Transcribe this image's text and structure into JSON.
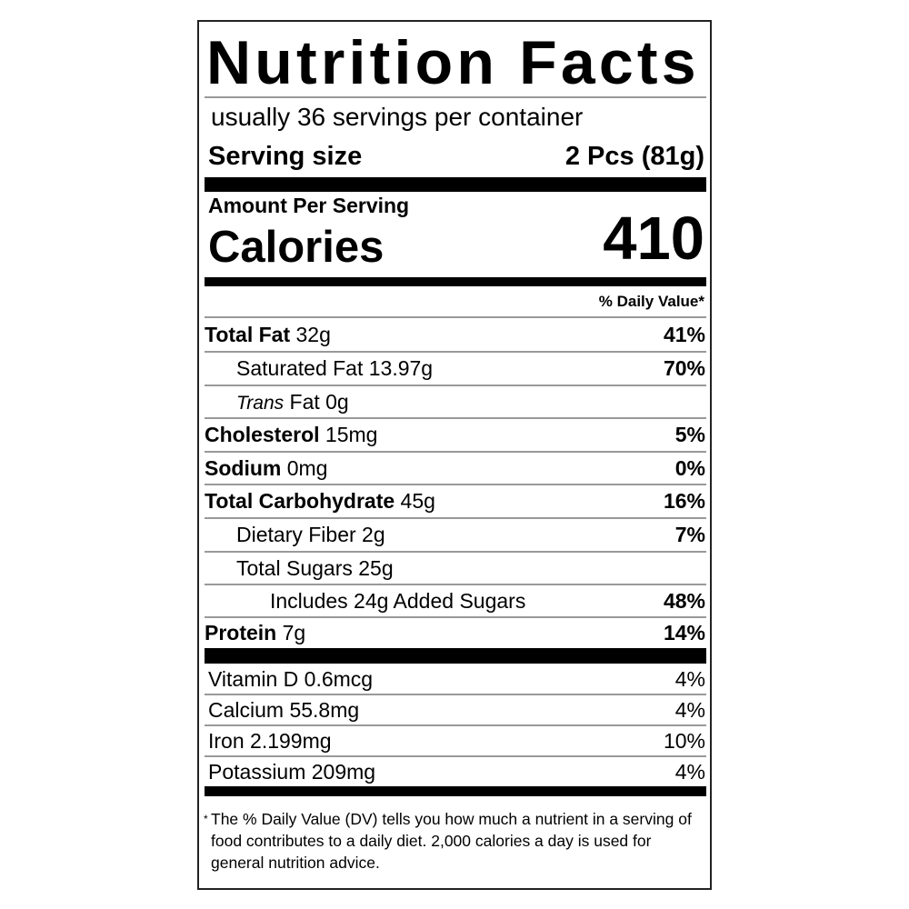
{
  "title": "Nutrition Facts",
  "servings_per_container": "usually 36 servings per container",
  "serving_size_label": "Serving size",
  "serving_size_value": "2 Pcs (81g)",
  "amount_per_serving": "Amount Per Serving",
  "calories_label": "Calories",
  "calories_value": "410",
  "daily_value_header": "% Daily Value*",
  "nutrients": [
    {
      "name": "Total Fat",
      "amount": "32g",
      "dv": "41%"
    },
    {
      "name": "Saturated Fat",
      "amount": "13.97g",
      "dv": "70%"
    },
    {
      "name": "Trans",
      "name_rest": "Fat",
      "amount": "0g",
      "dv": ""
    },
    {
      "name": "Cholesterol",
      "amount": "15mg",
      "dv": "5%"
    },
    {
      "name": "Sodium",
      "amount": "0mg",
      "dv": "0%"
    },
    {
      "name": "Total Carbohydrate",
      "amount": "45g",
      "dv": "16%"
    },
    {
      "name": "Dietary Fiber",
      "amount": "2g",
      "dv": "7%"
    },
    {
      "name": "Total Sugars",
      "amount": "25g",
      "dv": ""
    },
    {
      "name": "Includes 24g Added Sugars",
      "amount": "",
      "dv": "48%"
    },
    {
      "name": "Protein",
      "amount": "7g",
      "dv": "14%"
    }
  ],
  "vitamins": [
    {
      "label": "Vitamin D 0.6mcg",
      "dv": "4%"
    },
    {
      "label": "Calcium 55.8mg",
      "dv": "4%"
    },
    {
      "label": "Iron 2.199mg",
      "dv": "10%"
    },
    {
      "label": "Potassium 209mg",
      "dv": "4%"
    }
  ],
  "footnote_star": "*",
  "footnote": "The % Daily Value (DV) tells you how much a nutrient in a serving of food contributes to a daily diet. 2,000 calories a day is used for general nutrition advice."
}
